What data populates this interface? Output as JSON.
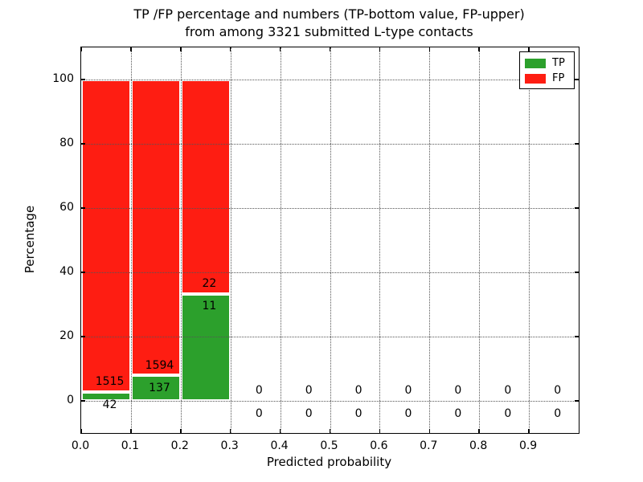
{
  "chart_data": {
    "type": "bar",
    "stacked": true,
    "title": "TP /FP percentage and numbers (TP-bottom value, FP-upper)\nfrom among 3321 submitted L-type contacts",
    "title_line1": "TP /FP percentage and numbers (TP-bottom value, FP-upper)",
    "title_line2": "from among 3321 submitted L-type contacts",
    "xlabel": "Predicted probability",
    "ylabel": "Percentage",
    "xlim": [
      0.0,
      1.0
    ],
    "ylim": [
      -10,
      110
    ],
    "grid": "dotted, drawn above bars",
    "legend_position": "upper right",
    "total_submitted": 3321,
    "series": [
      {
        "name": "TP",
        "color": "#2ca02c"
      },
      {
        "name": "FP",
        "color": "#fe1d12"
      }
    ],
    "xticks": [
      {
        "v": 0.0,
        "label": "0.0"
      },
      {
        "v": 0.1,
        "label": "0.1"
      },
      {
        "v": 0.2,
        "label": "0.2"
      },
      {
        "v": 0.3,
        "label": "0.3"
      },
      {
        "v": 0.4,
        "label": "0.4"
      },
      {
        "v": 0.5,
        "label": "0.5"
      },
      {
        "v": 0.6,
        "label": "0.6"
      },
      {
        "v": 0.7,
        "label": "0.7"
      },
      {
        "v": 0.8,
        "label": "0.8"
      },
      {
        "v": 0.9,
        "label": "0.9"
      }
    ],
    "yticks": [
      {
        "v": 0,
        "label": "0"
      },
      {
        "v": 20,
        "label": "20"
      },
      {
        "v": 40,
        "label": "40"
      },
      {
        "v": 60,
        "label": "60"
      },
      {
        "v": 80,
        "label": "80"
      },
      {
        "v": 100,
        "label": "100"
      }
    ],
    "bins": [
      {
        "range": [
          0.0,
          0.1
        ],
        "tp": 42,
        "fp": 1515,
        "tp_pct": 2.7,
        "fp_pct": 97.3
      },
      {
        "range": [
          0.1,
          0.2
        ],
        "tp": 137,
        "fp": 1594,
        "tp_pct": 7.92,
        "fp_pct": 92.08
      },
      {
        "range": [
          0.2,
          0.3
        ],
        "tp": 11,
        "fp": 22,
        "tp_pct": 33.33,
        "fp_pct": 66.67
      },
      {
        "range": [
          0.3,
          0.4
        ],
        "tp": 0,
        "fp": 0,
        "tp_pct": 0,
        "fp_pct": 0
      },
      {
        "range": [
          0.4,
          0.5
        ],
        "tp": 0,
        "fp": 0,
        "tp_pct": 0,
        "fp_pct": 0
      },
      {
        "range": [
          0.5,
          0.6
        ],
        "tp": 0,
        "fp": 0,
        "tp_pct": 0,
        "fp_pct": 0
      },
      {
        "range": [
          0.6,
          0.7
        ],
        "tp": 0,
        "fp": 0,
        "tp_pct": 0,
        "fp_pct": 0
      },
      {
        "range": [
          0.7,
          0.8
        ],
        "tp": 0,
        "fp": 0,
        "tp_pct": 0,
        "fp_pct": 0
      },
      {
        "range": [
          0.8,
          0.9
        ],
        "tp": 0,
        "fp": 0,
        "tp_pct": 0,
        "fp_pct": 0
      },
      {
        "range": [
          0.9,
          1.0
        ],
        "tp": 0,
        "fp": 0,
        "tp_pct": 0,
        "fp_pct": 0
      }
    ]
  }
}
